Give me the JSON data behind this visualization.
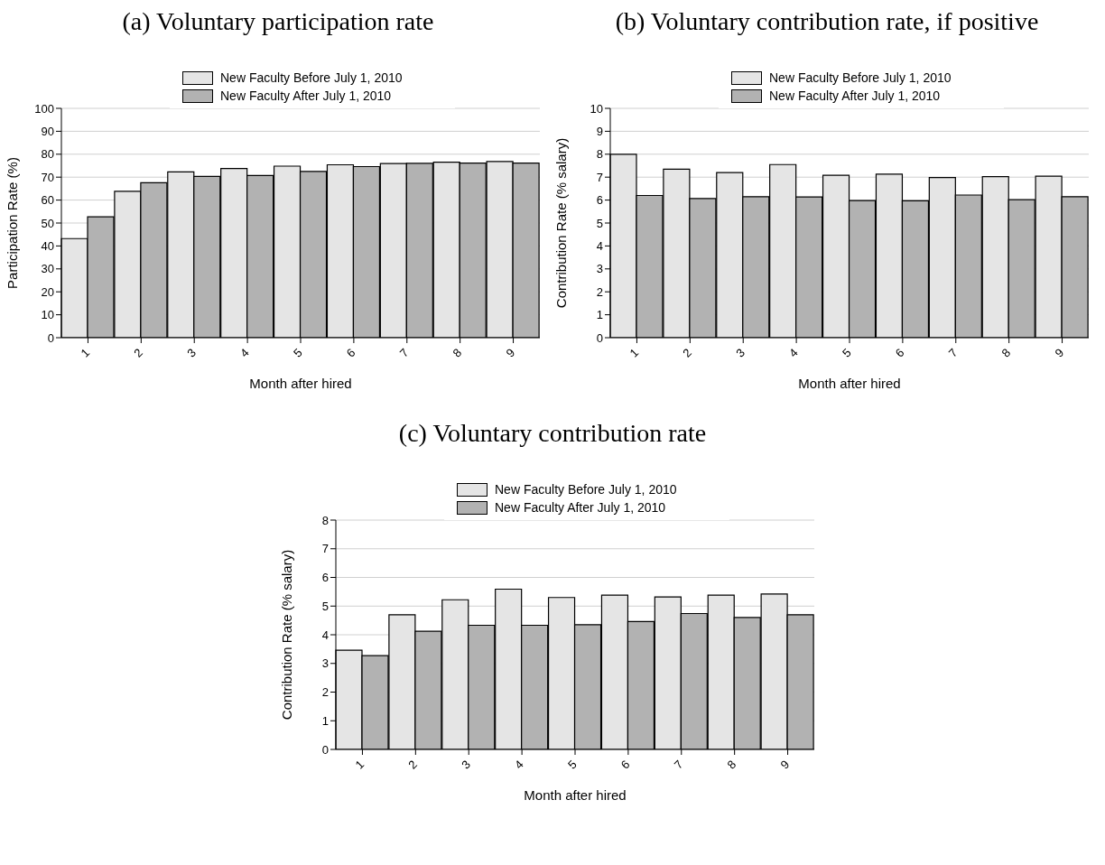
{
  "chart_data": [
    {
      "type": "bar",
      "title": "(a) Voluntary participation rate",
      "xlabel": "Month after hired",
      "ylabel": "Participation Rate (%)",
      "categories": [
        "1",
        "2",
        "3",
        "4",
        "5",
        "6",
        "7",
        "8",
        "9"
      ],
      "series": [
        {
          "name": "New Faculty Before July 1, 2010",
          "color": "#e5e5e5",
          "values": [
            43.2,
            63.8,
            72.3,
            73.8,
            74.8,
            75.4,
            75.9,
            76.5,
            76.8
          ]
        },
        {
          "name": "New Faculty After July 1, 2010",
          "color": "#b2b2b2",
          "values": [
            52.7,
            67.6,
            70.3,
            70.7,
            72.5,
            74.6,
            76.0,
            76.1,
            76.1
          ]
        }
      ],
      "ylim": [
        0,
        100
      ],
      "yticks": [
        0,
        10,
        20,
        30,
        40,
        50,
        60,
        70,
        80,
        90,
        100
      ],
      "grid": "y",
      "legend": "top"
    },
    {
      "type": "bar",
      "title": "(b) Voluntary contribution rate, if positive",
      "xlabel": "Month after hired",
      "ylabel": "Contribution Rate (% salary)",
      "categories": [
        "1",
        "2",
        "3",
        "4",
        "5",
        "6",
        "7",
        "8",
        "9"
      ],
      "series": [
        {
          "name": "New Faculty Before July 1, 2010",
          "color": "#e5e5e5",
          "values": [
            8.0,
            7.35,
            7.2,
            7.55,
            7.08,
            7.13,
            6.98,
            7.02,
            7.04
          ]
        },
        {
          "name": "New Faculty After July 1, 2010",
          "color": "#b2b2b2",
          "values": [
            6.2,
            6.07,
            6.15,
            6.14,
            5.98,
            5.97,
            6.22,
            6.02,
            6.15
          ]
        }
      ],
      "ylim": [
        0,
        10
      ],
      "yticks": [
        0,
        1,
        2,
        3,
        4,
        5,
        6,
        7,
        8,
        9,
        10
      ],
      "grid": "y",
      "legend": "top"
    },
    {
      "type": "bar",
      "title": "(c) Voluntary contribution rate",
      "xlabel": "Month after hired",
      "ylabel": "Contribution Rate (% salary)",
      "categories": [
        "1",
        "2",
        "3",
        "4",
        "5",
        "6",
        "7",
        "8",
        "9"
      ],
      "series": [
        {
          "name": "New Faculty Before July 1, 2010",
          "color": "#e5e5e5",
          "values": [
            3.46,
            4.7,
            5.22,
            5.59,
            5.3,
            5.38,
            5.32,
            5.38,
            5.42
          ]
        },
        {
          "name": "New Faculty After July 1, 2010",
          "color": "#b2b2b2",
          "values": [
            3.27,
            4.12,
            4.33,
            4.33,
            4.35,
            4.46,
            4.74,
            4.6,
            4.7
          ]
        }
      ],
      "ylim": [
        0,
        8
      ],
      "yticks": [
        0,
        1,
        2,
        3,
        4,
        5,
        6,
        7,
        8
      ],
      "grid": "y",
      "legend": "top"
    }
  ]
}
